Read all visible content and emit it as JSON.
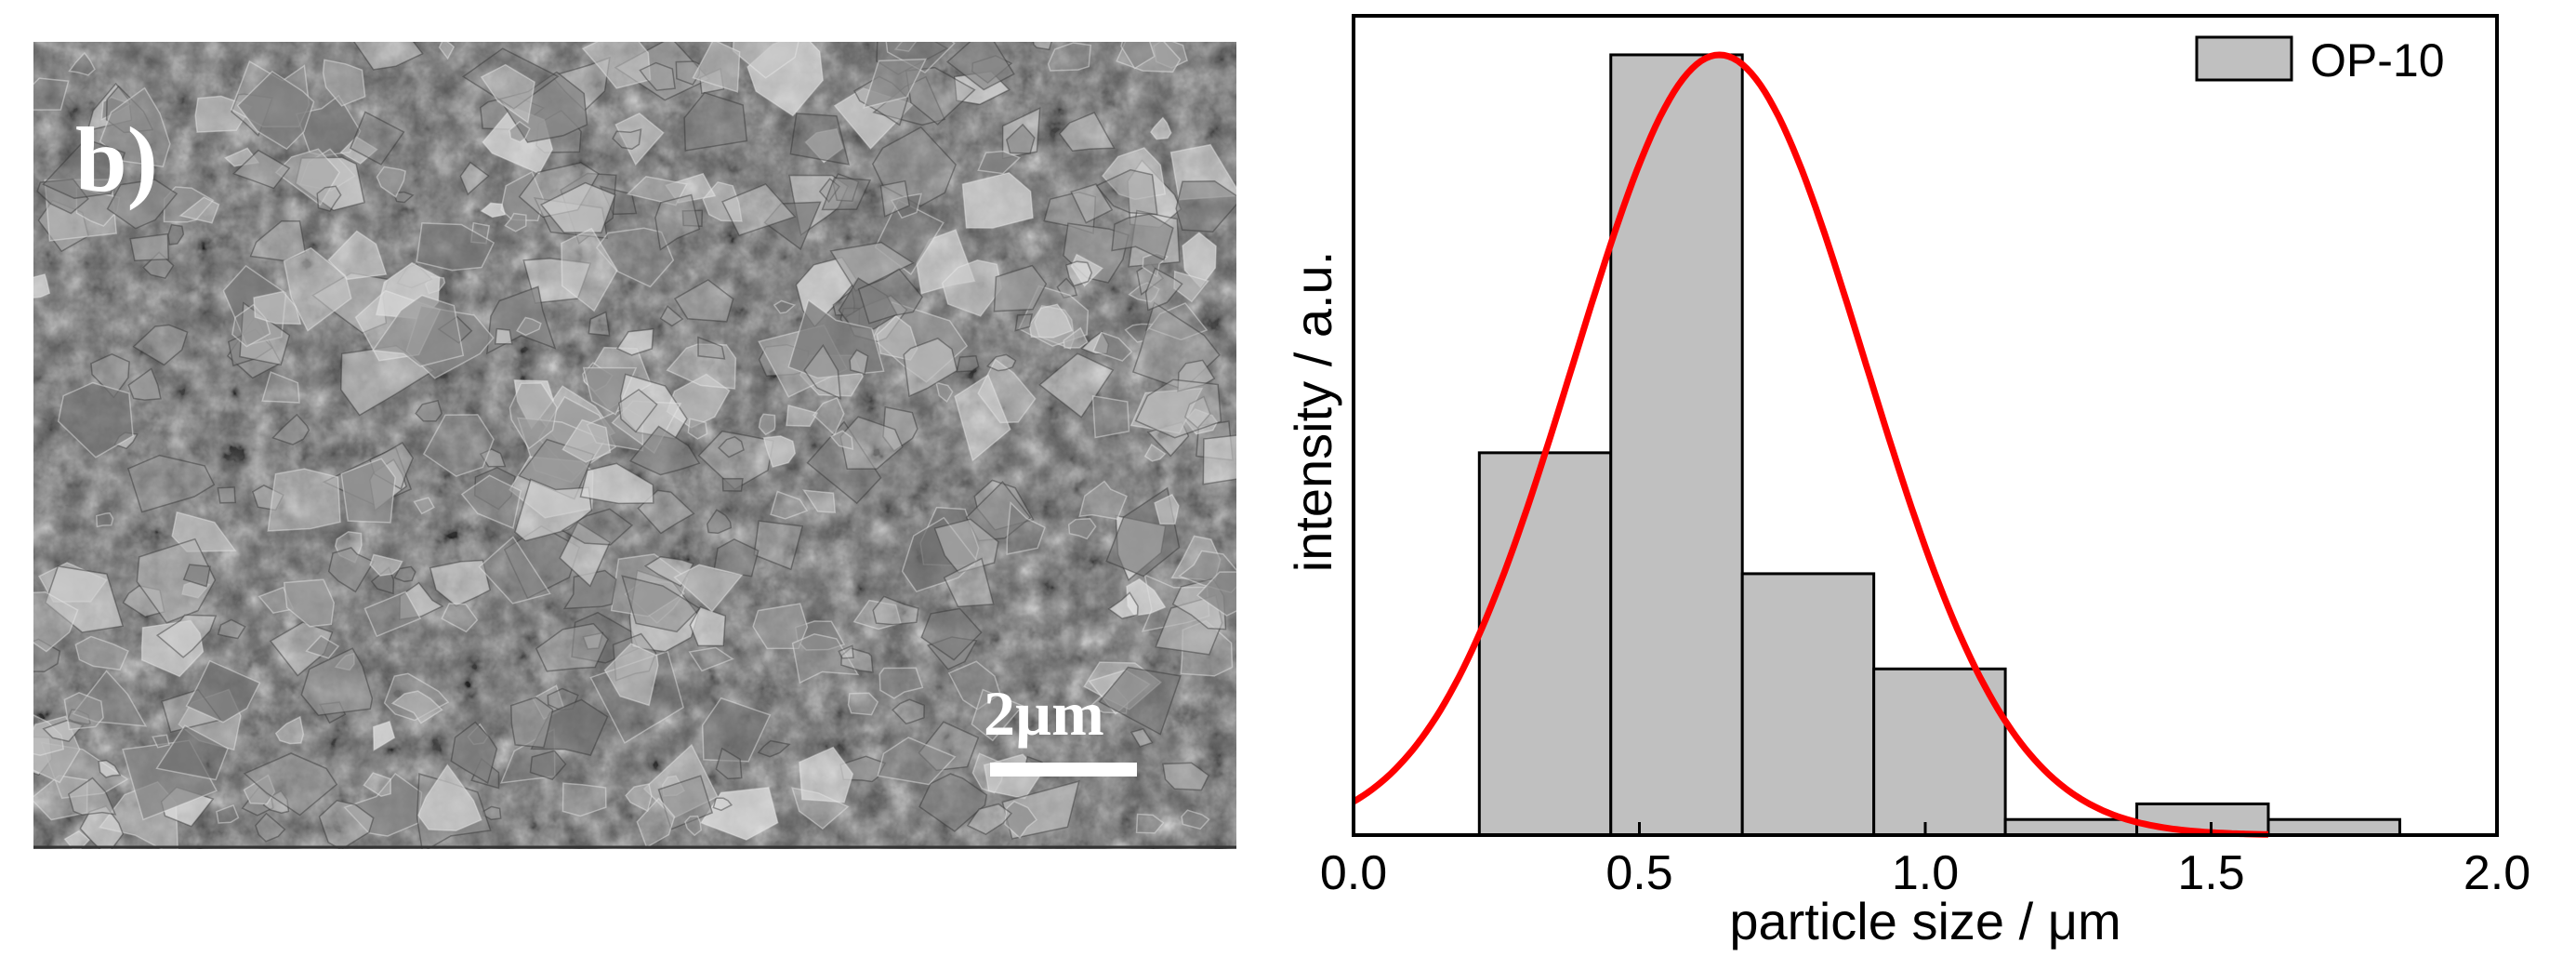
{
  "sem_image": {
    "panel_label": "b)",
    "scale_bar_label": "2µm",
    "scale_bar_length_um": 2
  },
  "chart_data": {
    "type": "bar",
    "title": "",
    "xlabel": "particle size / μm",
    "ylabel": "intensity / a.u.",
    "xlim": [
      0,
      2
    ],
    "ylim": [
      0,
      1.05
    ],
    "xticks": [
      0,
      0.5,
      1,
      1.5,
      2
    ],
    "xtick_labels": [
      "0.0",
      "0.5",
      "1.0",
      "1.5",
      "2.0"
    ],
    "y_tick_labels": false,
    "bins": [
      {
        "x0": 0.22,
        "x1": 0.45,
        "value": 0.49
      },
      {
        "x0": 0.45,
        "x1": 0.68,
        "value": 1.0
      },
      {
        "x0": 0.68,
        "x1": 0.91,
        "value": 0.335
      },
      {
        "x0": 0.91,
        "x1": 1.14,
        "value": 0.213
      },
      {
        "x0": 1.14,
        "x1": 1.37,
        "value": 0.02
      },
      {
        "x0": 1.37,
        "x1": 1.6,
        "value": 0.04
      },
      {
        "x0": 1.6,
        "x1": 1.83,
        "value": 0.02
      }
    ],
    "series": [
      {
        "name": "OP-10",
        "color": "#c0c0c0"
      }
    ],
    "fit_curve": {
      "type": "gaussian",
      "color": "#ff0000",
      "mean": 0.64,
      "sigma": 0.255,
      "amplitude": 1.0,
      "x_range": [
        0,
        1.6
      ]
    },
    "legend": {
      "position": "top-right",
      "label": "OP-10"
    },
    "grid": false
  }
}
